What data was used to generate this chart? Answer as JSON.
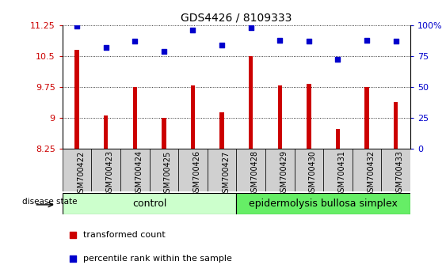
{
  "title": "GDS4426 / 8109333",
  "samples": [
    "GSM700422",
    "GSM700423",
    "GSM700424",
    "GSM700425",
    "GSM700426",
    "GSM700427",
    "GSM700428",
    "GSM700429",
    "GSM700430",
    "GSM700431",
    "GSM700432",
    "GSM700433"
  ],
  "transformed_counts": [
    10.65,
    9.05,
    9.75,
    9.0,
    9.78,
    9.12,
    10.5,
    9.78,
    9.83,
    8.72,
    9.75,
    9.38
  ],
  "percentile_ranks": [
    99,
    82,
    87,
    79,
    96,
    84,
    98,
    88,
    87,
    72,
    88,
    87
  ],
  "ylim_left": [
    8.25,
    11.25
  ],
  "ylim_right": [
    0,
    100
  ],
  "yticks_left": [
    8.25,
    9.0,
    9.75,
    10.5,
    11.25
  ],
  "ytick_labels_left": [
    "8.25",
    "9",
    "9.75",
    "10.5",
    "11.25"
  ],
  "yticks_right": [
    0,
    25,
    50,
    75,
    100
  ],
  "ytick_labels_right": [
    "0",
    "25",
    "50",
    "75",
    "100%"
  ],
  "bar_color": "#cc0000",
  "dot_color": "#0000cc",
  "control_color": "#ccffcc",
  "disease_color": "#66ee66",
  "xlabel_bg_color": "#d0d0d0",
  "legend_bar": "transformed count",
  "legend_dot": "percentile rank within the sample",
  "group_label_control": "control",
  "group_label_disease": "epidermolysis bullosa simplex",
  "disease_state_label": "disease state",
  "control_count": 6,
  "disease_count": 6,
  "bar_width": 0.15
}
